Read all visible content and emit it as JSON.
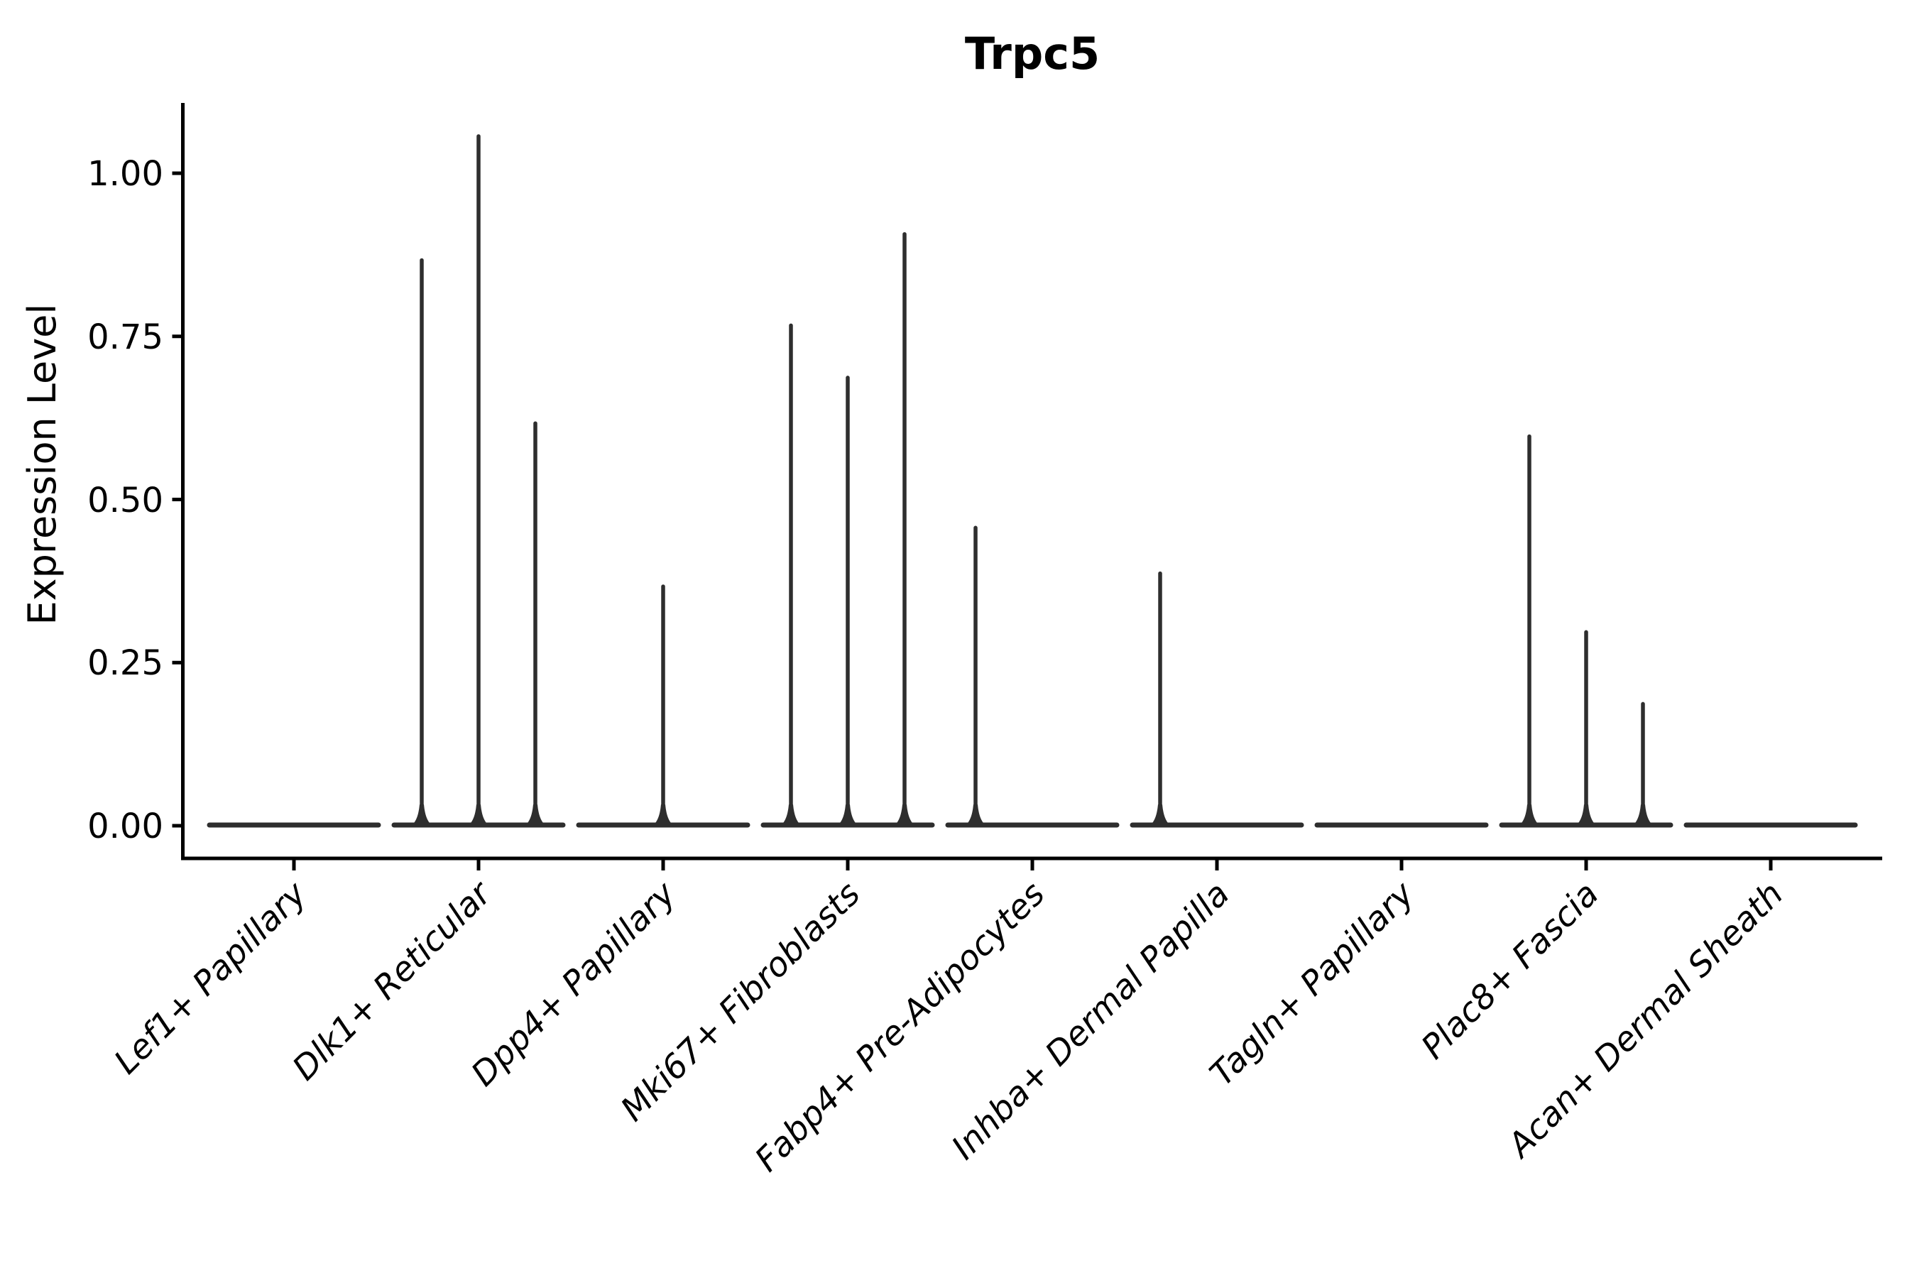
{
  "chart_data": {
    "type": "violin",
    "title": "Trpc5",
    "ylabel": "Expression Level",
    "xlabel": "",
    "grid": false,
    "legend": null,
    "background_color": "#ffffff",
    "axis_color": "#000000",
    "violin_color": "#2e2e2e",
    "ylim": [
      0,
      1.11
    ],
    "yticks": [
      0.0,
      0.25,
      0.5,
      0.75,
      1.0
    ],
    "ytick_labels": [
      "0.00",
      "0.25",
      "0.50",
      "0.75",
      "1.00"
    ],
    "categories": [
      "Lef1+ Papillary",
      "Dlk1+ Reticular",
      "Dpp4+ Papillary",
      "Mki67+ Fibroblasts",
      "Fabp4+ Pre-Adipocytes",
      "Inhba+ Dermal Papilla",
      "Tagln+ Papillary",
      "Plac8+ Fascia",
      "Acan+ Dermal Sheath"
    ],
    "violins": [
      {
        "category": "Lef1+ Papillary",
        "baseline_value": 0,
        "spikes": []
      },
      {
        "category": "Dlk1+ Reticular",
        "baseline_value": 0,
        "spikes": [
          {
            "pos": -1,
            "value": 0.87
          },
          {
            "pos": 0,
            "value": 1.06
          },
          {
            "pos": 1,
            "value": 0.62
          }
        ]
      },
      {
        "category": "Dpp4+ Papillary",
        "baseline_value": 0,
        "spikes": [
          {
            "pos": 0,
            "value": 0.37
          }
        ]
      },
      {
        "category": "Mki67+ Fibroblasts",
        "baseline_value": 0,
        "spikes": [
          {
            "pos": -1,
            "value": 0.77
          },
          {
            "pos": 0,
            "value": 0.69
          },
          {
            "pos": 1,
            "value": 0.91
          }
        ]
      },
      {
        "category": "Fabp4+ Pre-Adipocytes",
        "baseline_value": 0,
        "spikes": [
          {
            "pos": -1,
            "value": 0.46
          }
        ]
      },
      {
        "category": "Inhba+ Dermal Papilla",
        "baseline_value": 0,
        "spikes": [
          {
            "pos": -1,
            "value": 0.39
          }
        ]
      },
      {
        "category": "Tagln+ Papillary",
        "baseline_value": 0,
        "spikes": []
      },
      {
        "category": "Plac8+ Fascia",
        "baseline_value": 0,
        "spikes": [
          {
            "pos": -1,
            "value": 0.6
          },
          {
            "pos": 0,
            "value": 0.3
          },
          {
            "pos": 1,
            "value": 0.19
          }
        ]
      },
      {
        "category": "Acan+ Dermal Sheath",
        "baseline_value": 0,
        "spikes": []
      }
    ]
  }
}
